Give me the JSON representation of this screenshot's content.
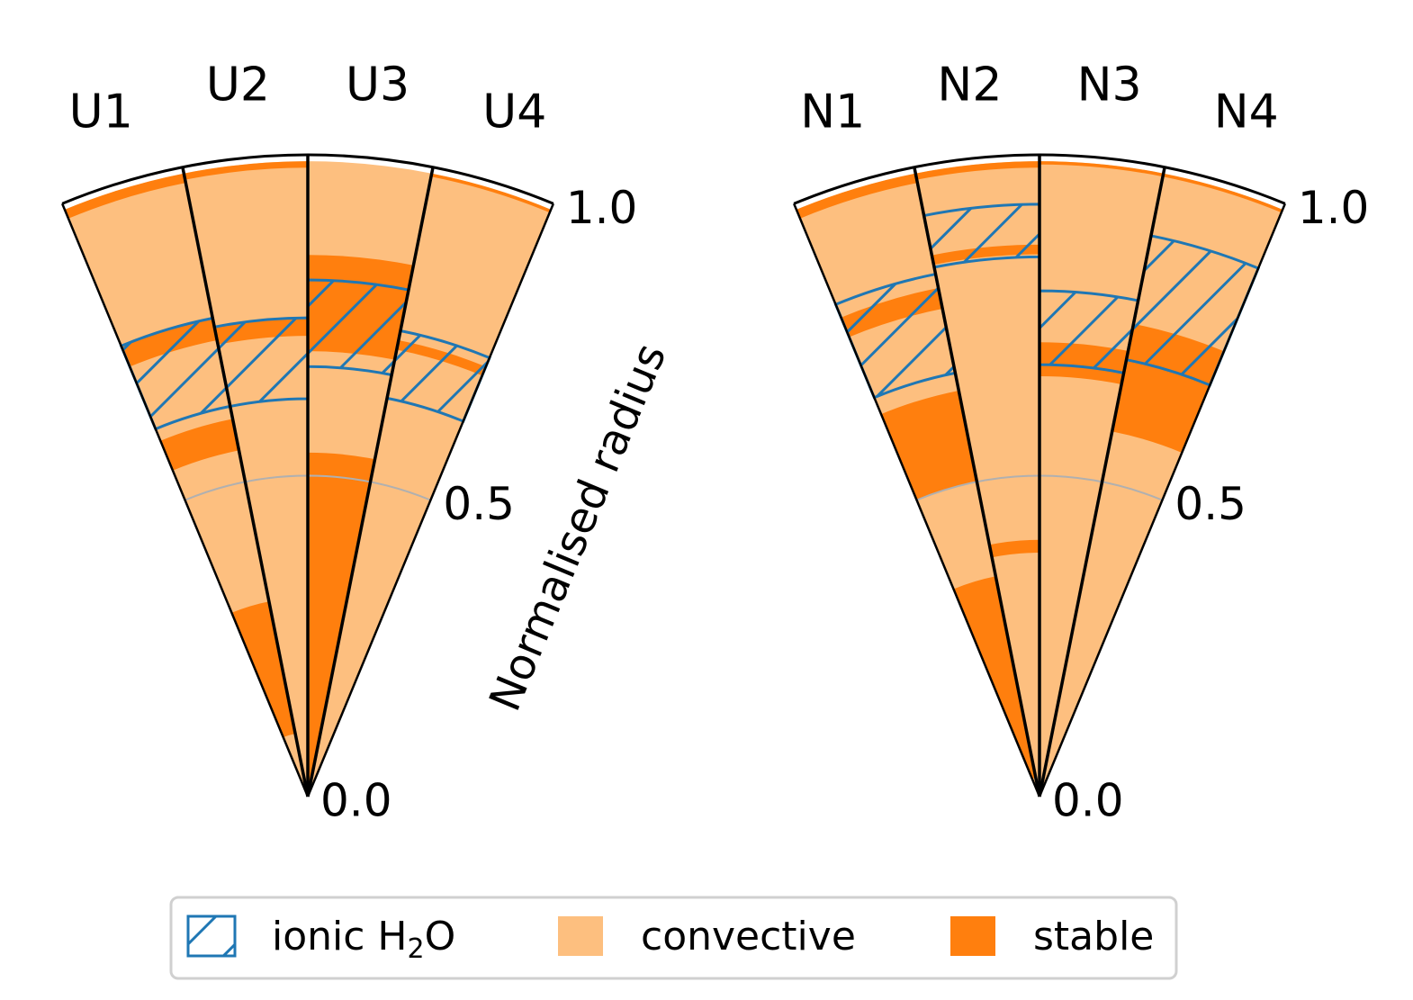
{
  "chart_data": {
    "type": "polar",
    "description_free": true,
    "colors": {
      "convective": "#fdbf7f",
      "stable": "#ff7f0e",
      "ionic": "#1f77b4",
      "reference_arc": "#b0b0b0"
    },
    "radial_axis": {
      "label": "Normalised radius",
      "ticks": [
        "0.0",
        "0.5",
        "1.0"
      ],
      "range": [
        0,
        1
      ]
    },
    "reference_circle": 0.5,
    "fans": [
      {
        "wedges": [
          {
            "label": "U1",
            "surface": 0.99,
            "stable": [
              [
                0.975,
                0.99
              ],
              [
                0.725,
                0.76
              ],
              [
                0.55,
                0.6
              ],
              [
                0.1,
                0.31
              ]
            ],
            "ionic": [
              0.62,
              0.76
            ]
          },
          {
            "label": "U2",
            "surface": 0.99,
            "stable": [
              [
                0.98,
                0.99
              ],
              [
                0.718,
                0.746
              ]
            ],
            "ionic": [
              0.62,
              0.746
            ]
          },
          {
            "label": "U3",
            "surface": 0.99,
            "stable": [
              [
                0.694,
                0.844
              ],
              [
                0,
                0.536
              ]
            ],
            "ionic": [
              0.67,
              0.805
            ]
          },
          {
            "label": "U4",
            "surface": 0.99,
            "stable": [
              [
                0.985,
                0.99
              ],
              [
                0.71,
                0.725
              ]
            ],
            "ionic": [
              0.633,
              0.74
            ]
          }
        ]
      },
      {
        "wedges": [
          {
            "label": "N1",
            "surface": 0.99,
            "stable": [
              [
                0.975,
                0.99
              ],
              [
                0.775,
                0.808
              ],
              [
                0.5,
                0.645
              ],
              [
                0.03,
                0.35
              ]
            ],
            "ionic": [
              0.673,
              0.83
            ]
          },
          {
            "label": "N2",
            "surface": 0.99,
            "stable": [
              [
                0.98,
                0.99
              ],
              [
                0.845,
                0.86
              ],
              [
                0.38,
                0.4
              ]
            ],
            "ionic": [
              0.841,
              0.923
            ]
          },
          {
            "label": "N3",
            "surface": 0.99,
            "stable": [
              [
                0.985,
                0.99
              ],
              [
                0.655,
                0.708
              ]
            ],
            "ionic": [
              0.673,
              0.788
            ]
          },
          {
            "label": "N4",
            "surface": 0.99,
            "stable": [
              [
                0.985,
                0.99
              ],
              [
                0.58,
                0.751
              ]
            ],
            "ionic": [
              0.694,
              0.891
            ]
          }
        ]
      }
    ],
    "legend": {
      "placement": "bottom",
      "entries": [
        {
          "key": "ionic",
          "label_pre": "ionic H",
          "label_sub": "2",
          "label_post": "O"
        },
        {
          "key": "convective",
          "label": "convective"
        },
        {
          "key": "stable",
          "label": "stable"
        }
      ]
    }
  }
}
